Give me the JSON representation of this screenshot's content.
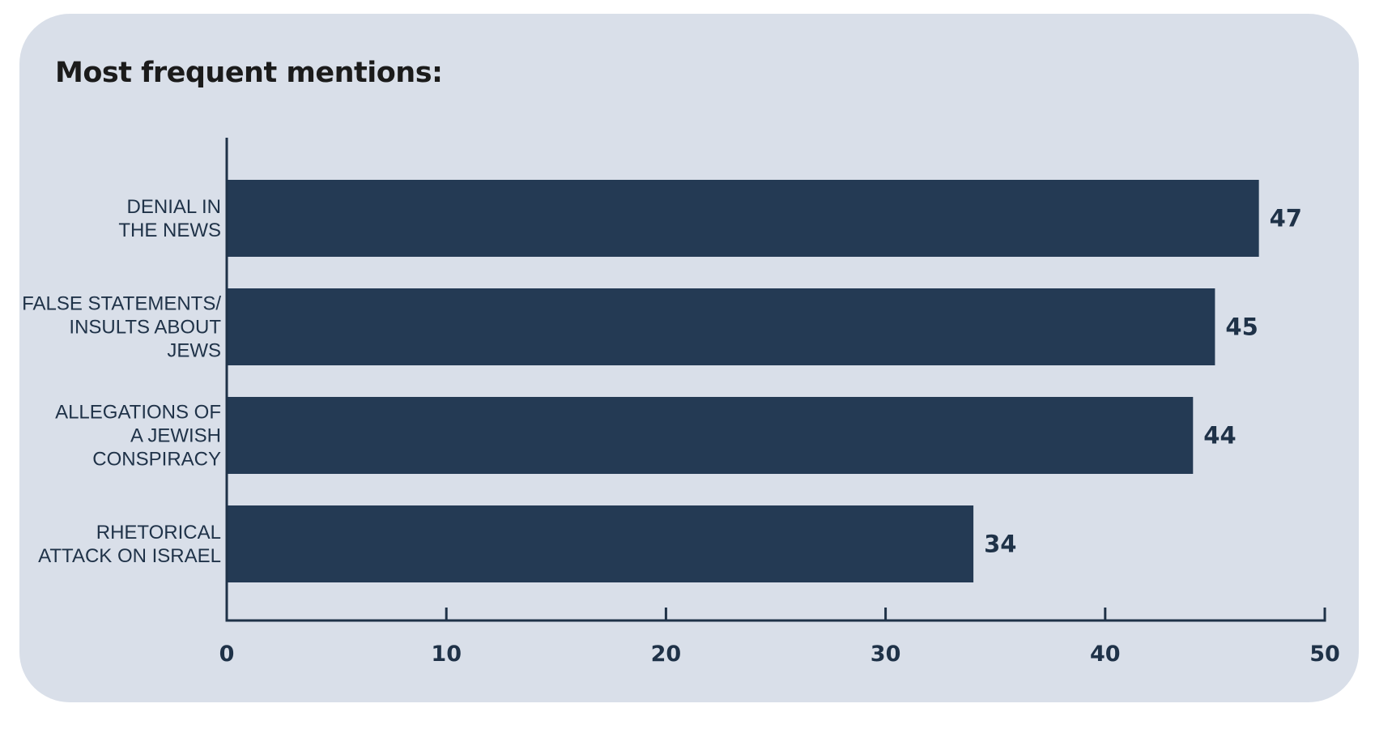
{
  "title": "Most frequent mentions:",
  "chart_data": {
    "type": "bar",
    "orientation": "horizontal",
    "categories": [
      [
        "DENIAL IN",
        "THE NEWS"
      ],
      [
        "FALSE STATEMENTS/",
        "INSULTS ABOUT",
        "JEWS"
      ],
      [
        "ALLEGATIONS OF",
        "A JEWISH",
        "CONSPIRACY"
      ],
      [
        "RHETORICAL",
        "ATTACK ON ISRAEL"
      ]
    ],
    "values": [
      47,
      45,
      44,
      34
    ],
    "xlim": [
      0,
      50
    ],
    "xticks": [
      0,
      10,
      20,
      30,
      40,
      50
    ],
    "grid": false,
    "legend": "none",
    "colors": {
      "bar": "#243a54",
      "axis": "#1f3248",
      "text": "#1f3248",
      "background": "#d9dfe9"
    }
  }
}
